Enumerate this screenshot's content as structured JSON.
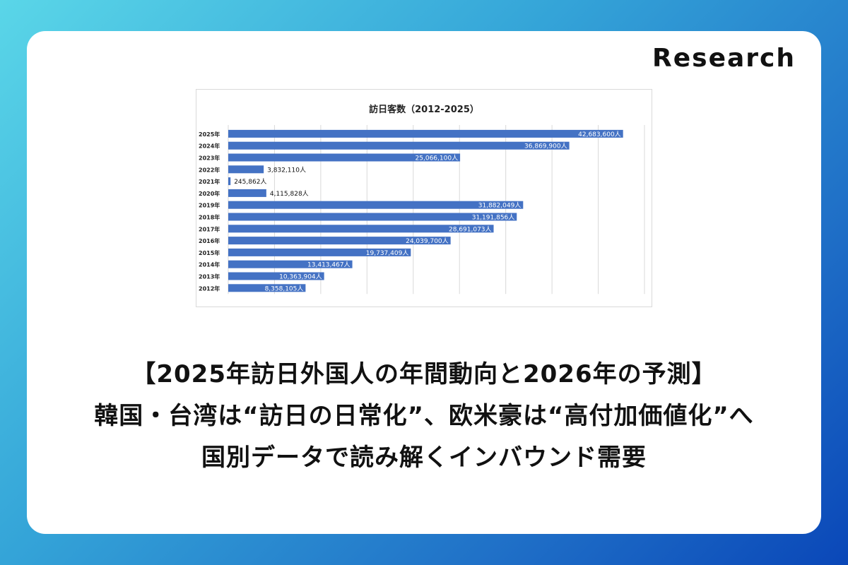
{
  "badge": "Research",
  "headline": {
    "line1": "【2025年訪日外国人の年間動向と2026年の予測】",
    "line2": "韓国・台湾は“訪日の日常化”、欧米豪は“高付加価値化”へ",
    "line3": "国別データで読み解くインバウンド需要"
  },
  "colors": {
    "bar": "#4472c4",
    "card": "#ffffff",
    "gridline": "#d9d9d9",
    "text": "#111111"
  },
  "chart_data": {
    "type": "bar",
    "orientation": "horizontal",
    "title": "訪日客数（2012-2025）",
    "xlabel": "",
    "ylabel": "",
    "xlim": [
      0,
      45000000
    ],
    "grid": true,
    "legend": "none",
    "categories": [
      "2025年",
      "2024年",
      "2023年",
      "2022年",
      "2021年",
      "2020年",
      "2019年",
      "2018年",
      "2017年",
      "2016年",
      "2015年",
      "2014年",
      "2013年",
      "2012年"
    ],
    "values": [
      42683600,
      36869900,
      25066100,
      3832110,
      245862,
      4115828,
      31882049,
      31191856,
      28691073,
      24039700,
      19737409,
      13413467,
      10363904,
      8358105
    ],
    "data_labels": [
      "42,683,600人",
      "36,869,900人",
      "25,066,100人",
      "3,832,110人",
      "245,862人",
      "4,115,828人",
      "31,882,049人",
      "31,191,856人",
      "28,691,073人",
      "24,039,700人",
      "19,737,409人",
      "13,413,467人",
      "10,363,904人",
      "8,358,105人"
    ]
  }
}
